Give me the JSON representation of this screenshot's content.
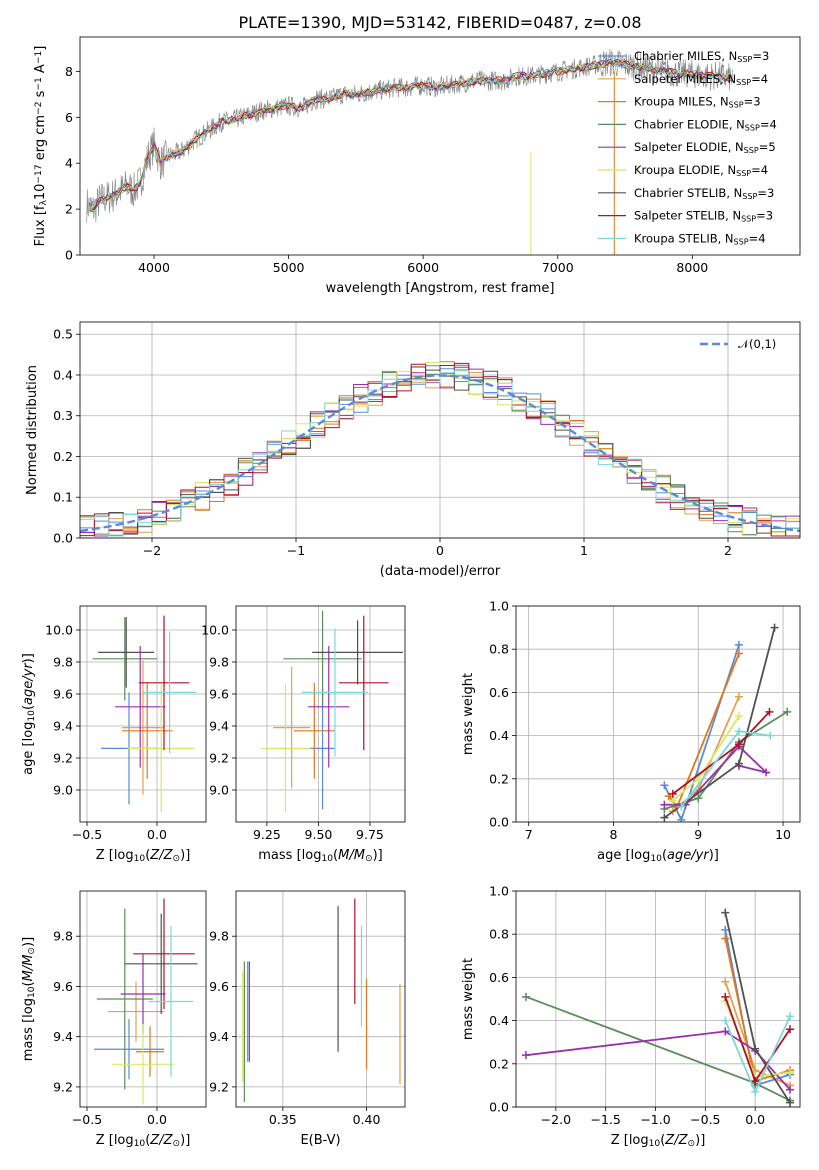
{
  "figure": {
    "title": "PLATE=1390, MJD=53142, FIBERID=0487, z=0.08"
  },
  "models": [
    {
      "label": "Chabrier MILES, N$_{SSP}$=3",
      "imf": "Chabrier",
      "lib": "MILES",
      "nssp": "3",
      "color": "#5b8ad6"
    },
    {
      "label": "Salpeter MILES, N$_{SSP}$=4",
      "imf": "Salpeter",
      "lib": "MILES",
      "nssp": "4",
      "color": "#e6a04a"
    },
    {
      "label": "Kroupa MILES, N$_{SSP}$=3",
      "imf": "Kroupa",
      "lib": "MILES",
      "nssp": "3",
      "color": "#e0771c"
    },
    {
      "label": "Chabrier ELODIE, N$_{SSP}$=4",
      "imf": "Chabrier",
      "lib": "ELODIE",
      "nssp": "4",
      "color": "#5c8c5c"
    },
    {
      "label": "Salpeter ELODIE, N$_{SSP}$=5",
      "imf": "Salpeter",
      "lib": "ELODIE",
      "nssp": "5",
      "color": "#9b2fae"
    },
    {
      "label": "Kroupa ELODIE, N$_{SSP}$=4",
      "imf": "Kroupa",
      "lib": "ELODIE",
      "nssp": "4",
      "color": "#d7e868"
    },
    {
      "label": "Chabrier STELIB, N$_{SSP}$=3",
      "imf": "Chabrier",
      "lib": "STELIB",
      "nssp": "3",
      "color": "#505050"
    },
    {
      "label": "Salpeter STELIB, N$_{SSP}$=3",
      "imf": "Salpeter",
      "lib": "STELIB",
      "nssp": "3",
      "color": "#b0102a"
    },
    {
      "label": "Kroupa STELIB, N$_{SSP}$=4",
      "imf": "Kroupa",
      "lib": "STELIB",
      "nssp": "4",
      "color": "#7dd8d8"
    }
  ],
  "chart_data": [
    {
      "id": "spectrum",
      "type": "line",
      "xlabel": "wavelength [Angstrom, rest frame]",
      "ylabel": "Flux [f$_\\lambda$10$^{-17}$ erg cm$^{-2}$ s$^{-1}$ A$^{-1}$]",
      "xlim": [
        3450,
        8800
      ],
      "ylim": [
        0,
        9.5
      ],
      "xticks": [
        "4000",
        "5000",
        "6000",
        "7000",
        "8000"
      ],
      "yticks": [
        "0",
        "2",
        "4",
        "6",
        "8"
      ],
      "legend_position": "right",
      "series": [
        {
          "name": "data",
          "color": "#808080",
          "x": [
            3500,
            3550,
            3600,
            3700,
            3800,
            3850,
            3900,
            3950,
            4000,
            4050,
            4100,
            4200,
            4300,
            4400,
            4500,
            4600,
            4700,
            4800,
            4900,
            5000,
            5100,
            5200,
            5300,
            5400,
            5500,
            5600,
            5700,
            5800,
            5900,
            6000,
            6100,
            6200,
            6300,
            6400,
            6500,
            6600,
            6700,
            6800,
            6900,
            7000,
            7100,
            7200,
            7300,
            7400,
            7500,
            7600,
            7700,
            7800,
            7900,
            8000,
            8100,
            8200,
            8300
          ],
          "y": [
            2.2,
            2.0,
            2.4,
            2.6,
            3.0,
            2.8,
            3.2,
            4.2,
            4.8,
            4.0,
            4.3,
            4.5,
            5.0,
            5.4,
            5.8,
            5.9,
            6.1,
            6.3,
            6.4,
            6.5,
            6.4,
            6.8,
            6.8,
            7.0,
            7.0,
            7.1,
            7.2,
            7.3,
            7.3,
            7.4,
            7.3,
            7.4,
            7.5,
            7.6,
            7.6,
            7.6,
            7.8,
            7.8,
            7.9,
            8.0,
            8.1,
            8.2,
            8.3,
            8.4,
            8.3,
            8.2,
            8.1,
            8.0,
            7.9,
            7.9,
            7.8,
            7.8,
            7.7
          ]
        }
      ]
    },
    {
      "id": "residuals",
      "type": "histogram",
      "xlabel": "(data-model)/error",
      "ylabel": "Normed distribution",
      "xlim": [
        -2.5,
        2.5
      ],
      "ylim": [
        0,
        0.53
      ],
      "xticks": [
        "−2",
        "−1",
        "0",
        "1",
        "2"
      ],
      "yticks": [
        "0.0",
        "0.1",
        "0.2",
        "0.3",
        "0.4",
        "0.5"
      ],
      "bin_width": 0.1,
      "reference_curve_label": "$\\mathcal{N}(0,1)$",
      "legend_position": "top-right"
    },
    {
      "id": "age_vs_Z",
      "type": "errorbar",
      "xlabel": "Z [log$_{10}$($Z/Z_\\odot$)]",
      "ylabel": "age  [log$_{10}$($age/yr$)]",
      "xlim": [
        -0.55,
        0.35
      ],
      "ylim": [
        8.8,
        10.15
      ],
      "xticks": [
        "−0.5",
        "0.0"
      ],
      "xtickvals": [
        -0.5,
        0.0
      ],
      "yticks": [
        "9.0",
        "9.2",
        "9.4",
        "9.6",
        "9.8",
        "10.0"
      ],
      "points": [
        {
          "x": -0.2,
          "y": 9.26,
          "xerr": 0.2,
          "yerr": 0.35
        },
        {
          "x": -0.1,
          "y": 9.39,
          "xerr": 0.15,
          "yerr": 0.42
        },
        {
          "x": -0.07,
          "y": 9.37,
          "xerr": 0.18,
          "yerr": 0.3
        },
        {
          "x": -0.23,
          "y": 9.82,
          "xerr": 0.23,
          "yerr": 0.26
        },
        {
          "x": -0.12,
          "y": 9.52,
          "xerr": 0.18,
          "yerr": 0.38
        },
        {
          "x": 0.03,
          "y": 9.26,
          "xerr": 0.24,
          "yerr": 0.4
        },
        {
          "x": -0.22,
          "y": 9.86,
          "xerr": 0.2,
          "yerr": 0.22
        },
        {
          "x": 0.05,
          "y": 9.67,
          "xerr": 0.18,
          "yerr": 0.42
        },
        {
          "x": 0.09,
          "y": 9.61,
          "xerr": 0.19,
          "yerr": 0.38
        }
      ]
    },
    {
      "id": "age_vs_mass",
      "type": "errorbar",
      "xlabel": "mass [log$_{10}$($M/M_\\odot$)]",
      "ylabel": "",
      "xlim": [
        9.1,
        9.92
      ],
      "ylim": [
        8.8,
        10.15
      ],
      "xticks": [
        "9.25",
        "9.50",
        "9.75"
      ],
      "xtickvals": [
        9.25,
        9.5,
        9.75
      ],
      "yticks": [
        "9.0",
        "9.2",
        "9.4",
        "9.6",
        "9.8",
        "10.0"
      ],
      "points": [
        {
          "x": 9.52,
          "y": 9.26,
          "xerr": 0.06,
          "yerr": 0.38
        },
        {
          "x": 9.37,
          "y": 9.39,
          "xerr": 0.09,
          "yerr": 0.38
        },
        {
          "x": 9.48,
          "y": 9.37,
          "xerr": 0.1,
          "yerr": 0.3
        },
        {
          "x": 9.52,
          "y": 9.82,
          "xerr": 0.19,
          "yerr": 0.3
        },
        {
          "x": 9.55,
          "y": 9.52,
          "xerr": 0.1,
          "yerr": 0.38
        },
        {
          "x": 9.34,
          "y": 9.26,
          "xerr": 0.12,
          "yerr": 0.4
        },
        {
          "x": 9.69,
          "y": 9.86,
          "xerr": 0.22,
          "yerr": 0.2
        },
        {
          "x": 9.72,
          "y": 9.67,
          "xerr": 0.12,
          "yerr": 0.42
        },
        {
          "x": 9.58,
          "y": 9.61,
          "xerr": 0.16,
          "yerr": 0.4
        }
      ]
    },
    {
      "id": "weight_vs_age",
      "type": "line",
      "xlabel": "age  [log$_{10}$($age/yr$)]",
      "ylabel": "mass weight",
      "xlim": [
        6.85,
        10.2
      ],
      "ylim": [
        0,
        1.0
      ],
      "xticks": [
        "7",
        "8",
        "9",
        "10"
      ],
      "xtickvals": [
        7,
        8,
        9,
        10
      ],
      "yticks": [
        "0.0",
        "0.2",
        "0.4",
        "0.6",
        "0.8",
        "1.0"
      ],
      "series": [
        {
          "x": [
            8.6,
            8.8,
            9.48
          ],
          "y": [
            0.17,
            0.01,
            0.82
          ]
        },
        {
          "x": [
            8.7,
            9.0,
            9.48
          ],
          "y": [
            0.05,
            0.15,
            0.58
          ]
        },
        {
          "x": [
            8.65,
            8.75,
            9.48
          ],
          "y": [
            0.12,
            0.07,
            0.78
          ]
        },
        {
          "x": [
            8.6,
            9.0,
            9.48,
            10.05
          ],
          "y": [
            0.06,
            0.11,
            0.37,
            0.51
          ]
        },
        {
          "x": [
            8.6,
            8.85,
            9.48,
            9.8,
            9.48
          ],
          "y": [
            0.08,
            0.08,
            0.35,
            0.23,
            0.26
          ]
        },
        {
          "x": [
            8.7,
            9.0,
            9.48
          ],
          "y": [
            0.1,
            0.2,
            0.49
          ]
        },
        {
          "x": [
            8.6,
            9.48,
            9.9
          ],
          "y": [
            0.02,
            0.27,
            0.9
          ]
        },
        {
          "x": [
            8.7,
            9.48,
            9.84
          ],
          "y": [
            0.13,
            0.36,
            0.51
          ]
        },
        {
          "x": [
            8.8,
            9.48,
            9.85
          ],
          "y": [
            0.07,
            0.42,
            0.4
          ]
        }
      ]
    },
    {
      "id": "mass_vs_Z",
      "type": "errorbar",
      "xlabel": "Z [log$_{10}$($Z/Z_\\odot$)]",
      "ylabel": "mass [log$_{10}$($M/M_\\odot$)]",
      "xlim": [
        -0.55,
        0.35
      ],
      "ylim": [
        9.12,
        9.98
      ],
      "xticks": [
        "−0.5",
        "0.0"
      ],
      "xtickvals": [
        -0.5,
        0.0
      ],
      "yticks": [
        "9.2",
        "9.4",
        "9.6",
        "9.8"
      ],
      "points": [
        {
          "x": -0.2,
          "y": 9.35,
          "xerr": 0.25,
          "yerr": 0.12
        },
        {
          "x": -0.15,
          "y": 9.5,
          "xerr": 0.2,
          "yerr": 0.12
        },
        {
          "x": -0.05,
          "y": 9.34,
          "xerr": 0.1,
          "yerr": 0.1
        },
        {
          "x": -0.23,
          "y": 9.55,
          "xerr": 0.2,
          "yerr": 0.36
        },
        {
          "x": -0.1,
          "y": 9.57,
          "xerr": 0.16,
          "yerr": 0.16
        },
        {
          "x": -0.1,
          "y": 9.29,
          "xerr": 0.22,
          "yerr": 0.16
        },
        {
          "x": 0.03,
          "y": 9.69,
          "xerr": 0.26,
          "yerr": 0.2
        },
        {
          "x": 0.05,
          "y": 9.73,
          "xerr": 0.22,
          "yerr": 0.22
        },
        {
          "x": 0.1,
          "y": 9.54,
          "xerr": 0.16,
          "yerr": 0.3
        }
      ]
    },
    {
      "id": "mass_vs_EBV",
      "type": "errorbar",
      "xlabel": "E(B-V)",
      "ylabel": "",
      "xlim": [
        0.322,
        0.423
      ],
      "ylim": [
        9.12,
        9.98
      ],
      "xticks": [
        "0.35",
        "0.40"
      ],
      "xtickvals": [
        0.35,
        0.4
      ],
      "yticks": [
        "9.2",
        "9.4",
        "9.6",
        "9.8"
      ],
      "points": [
        {
          "x": 0.329,
          "y": 9.5,
          "xerr": 0,
          "yerr": 0.2
        },
        {
          "x": 0.42,
          "y": 9.41,
          "xerr": 0,
          "yerr": 0.2
        },
        {
          "x": 0.4,
          "y": 9.45,
          "xerr": 0,
          "yerr": 0.18
        },
        {
          "x": 0.327,
          "y": 9.42,
          "xerr": 0,
          "yerr": 0.28
        },
        {
          "x": 0.33,
          "y": 9.5,
          "xerr": 0,
          "yerr": 0.2
        },
        {
          "x": 0.326,
          "y": 9.44,
          "xerr": 0,
          "yerr": 0.22
        },
        {
          "x": 0.383,
          "y": 9.63,
          "xerr": 0,
          "yerr": 0.29
        },
        {
          "x": 0.393,
          "y": 9.74,
          "xerr": 0,
          "yerr": 0.21
        },
        {
          "x": 0.397,
          "y": 9.64,
          "xerr": 0,
          "yerr": 0.2
        }
      ]
    },
    {
      "id": "weight_vs_Z",
      "type": "line",
      "xlabel": "Z [log$_{10}$($Z/Z_\\odot$)]",
      "ylabel": "mass weight",
      "xlim": [
        -2.4,
        0.45
      ],
      "ylim": [
        0,
        1.0
      ],
      "xticks": [
        "−2.0",
        "−1.5",
        "−1.0",
        "−0.5",
        "0.0"
      ],
      "xtickvals": [
        -2.0,
        -1.5,
        -1.0,
        -0.5,
        0.0
      ],
      "yticks": [
        "0.0",
        "0.2",
        "0.4",
        "0.6",
        "0.8",
        "1.0"
      ],
      "series": [
        {
          "x": [
            -0.3,
            0.0,
            0.35
          ],
          "y": [
            0.82,
            0.1,
            0.15
          ]
        },
        {
          "x": [
            -0.3,
            0.0,
            0.35
          ],
          "y": [
            0.58,
            0.17,
            0.1
          ]
        },
        {
          "x": [
            -0.3,
            0.0,
            0.35
          ],
          "y": [
            0.78,
            0.12,
            0.17
          ]
        },
        {
          "x": [
            -2.3,
            0.0,
            0.35
          ],
          "y": [
            0.51,
            0.11,
            0.03
          ]
        },
        {
          "x": [
            -2.3,
            -0.3,
            0.0,
            0.35
          ],
          "y": [
            0.24,
            0.35,
            0.26,
            0.08
          ]
        },
        {
          "x": [
            -0.3,
            0.0,
            0.35
          ],
          "y": [
            0.49,
            0.14,
            0.16
          ]
        },
        {
          "x": [
            -0.3,
            0.0,
            0.35
          ],
          "y": [
            0.9,
            0.27,
            0.02
          ]
        },
        {
          "x": [
            -0.3,
            0.0,
            0.35
          ],
          "y": [
            0.51,
            0.12,
            0.36
          ]
        },
        {
          "x": [
            -0.3,
            0.0,
            0.35
          ],
          "y": [
            0.4,
            0.07,
            0.42
          ]
        }
      ]
    }
  ]
}
